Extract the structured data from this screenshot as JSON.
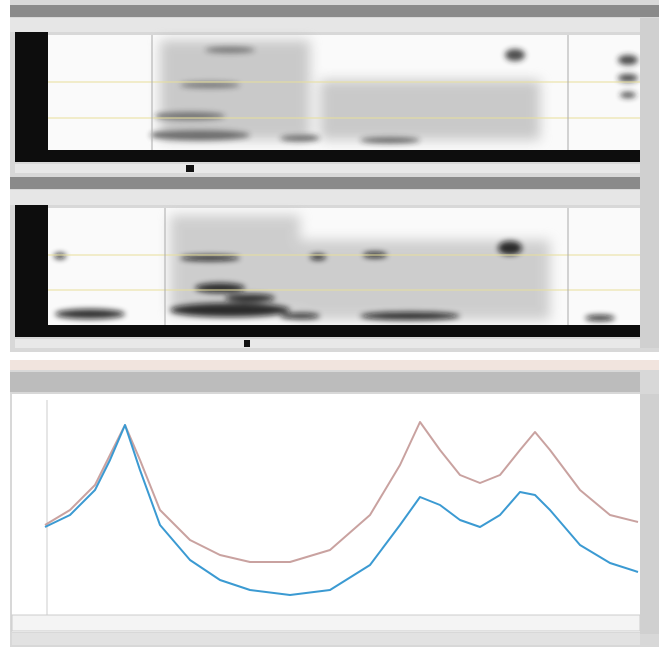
{
  "chart_data": {
    "type": "line",
    "x": [
      0,
      25,
      50,
      65,
      80,
      95,
      115,
      145,
      175,
      205,
      245,
      285,
      325,
      355,
      375,
      395,
      415,
      435,
      455,
      475,
      490,
      505,
      535,
      565,
      593
    ],
    "xlim": [
      0,
      593
    ],
    "ylim": [
      0,
      215
    ],
    "series": [
      {
        "color": "#c9a2a0",
        "values": [
          90,
          105,
          130,
          160,
          190,
          155,
          105,
          75,
          60,
          53,
          53,
          65,
          100,
          150,
          193,
          165,
          140,
          132,
          140,
          165,
          183,
          165,
          125,
          100,
          93
        ]
      },
      {
        "color": "#3b9ad2",
        "values": [
          88,
          100,
          125,
          155,
          190,
          145,
          90,
          55,
          35,
          25,
          20,
          25,
          50,
          90,
          118,
          110,
          95,
          88,
          100,
          123,
          120,
          105,
          70,
          52,
          43
        ]
      }
    ]
  }
}
